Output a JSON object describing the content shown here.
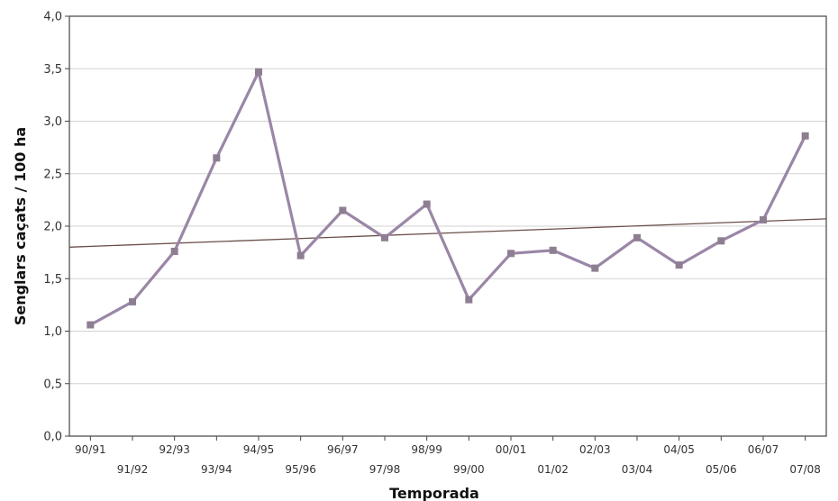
{
  "chart_data": {
    "type": "line",
    "title": "",
    "xlabel": "Temporada",
    "ylabel": "Senglars caçats / 100 ha",
    "ylim": [
      0,
      4
    ],
    "yticks": [
      "0,0",
      "0,5",
      "1,0",
      "1,5",
      "2,0",
      "2,5",
      "3,0",
      "3,5",
      "4,0"
    ],
    "grid": "horizontal",
    "categories": [
      "90/91",
      "91/92",
      "92/93",
      "93/94",
      "94/95",
      "95/96",
      "96/97",
      "97/98",
      "98/99",
      "99/00",
      "00/01",
      "01/02",
      "02/03",
      "03/04",
      "04/05",
      "05/06",
      "06/07",
      "07/08"
    ],
    "series": [
      {
        "values": [
          1.06,
          1.28,
          1.76,
          2.65,
          3.47,
          1.72,
          2.15,
          1.89,
          2.21,
          1.3,
          1.74,
          1.77,
          1.6,
          1.89,
          1.63,
          1.86,
          2.06,
          2.86
        ],
        "color": "#9a86a6",
        "marker_color": "#8e7e92"
      }
    ],
    "trendline": {
      "start": 1.8,
      "end": 2.07,
      "color": "#6b4f4a"
    }
  }
}
